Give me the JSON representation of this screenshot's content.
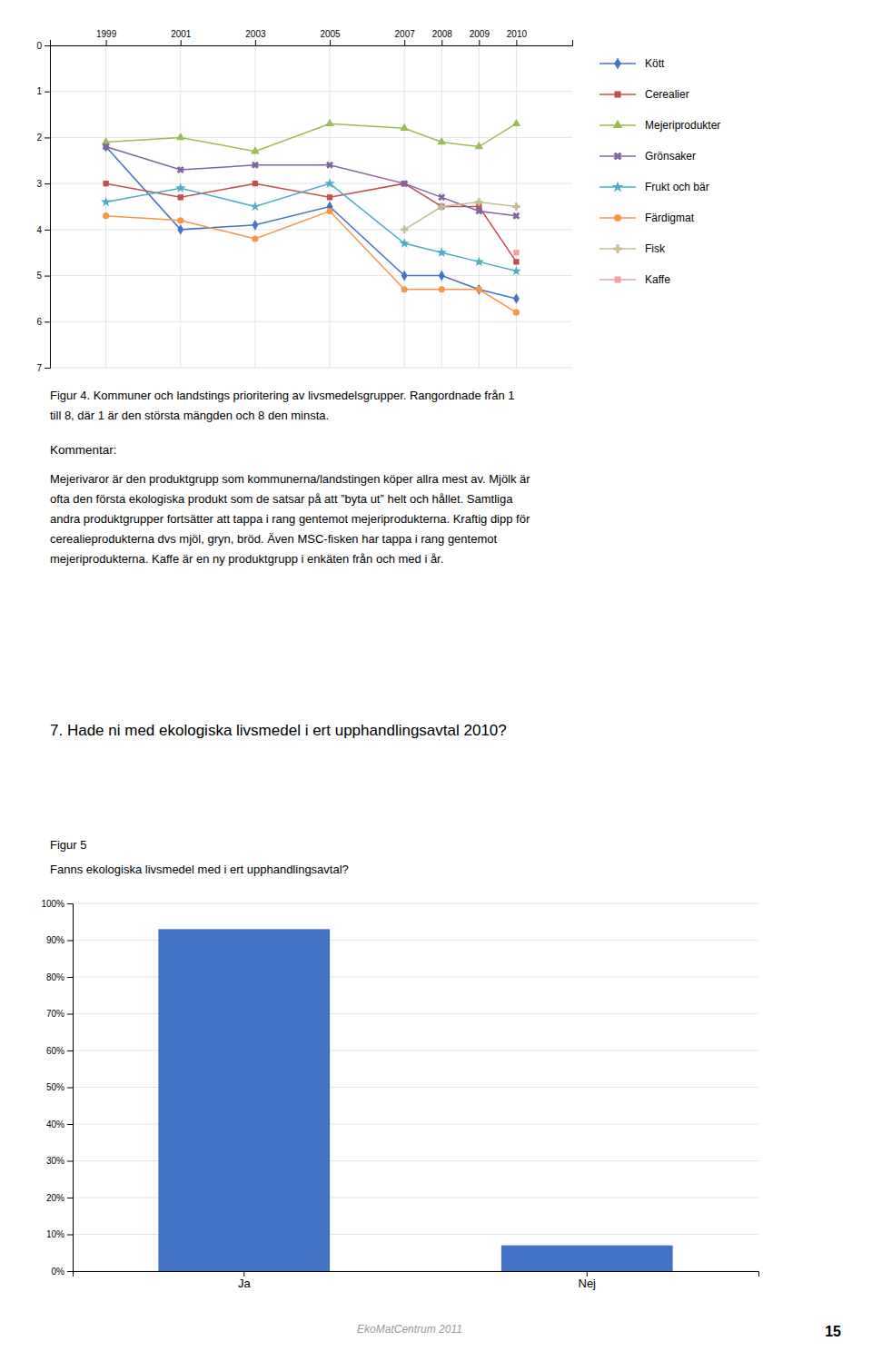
{
  "chart_data": [
    {
      "type": "line",
      "x": [
        1999,
        2001,
        2003,
        2005,
        2007,
        2008,
        2009,
        2010
      ],
      "xlim": [
        1997.5,
        2011.5
      ],
      "xticks": [
        1999,
        2001,
        2003,
        2005,
        2007,
        2008,
        2009,
        2010
      ],
      "ylim": [
        7,
        0
      ],
      "yticks": [
        0,
        1,
        2,
        3,
        4,
        5,
        6,
        7
      ],
      "grid": true,
      "legend": "right",
      "series": [
        {
          "name": "Kött",
          "color": "#4472C4",
          "marker": "diamond",
          "values": [
            2.2,
            4.0,
            3.9,
            3.5,
            5.0,
            5.0,
            5.3,
            5.5
          ]
        },
        {
          "name": "Cerealier",
          "color": "#C0504D",
          "marker": "square",
          "values": [
            3.0,
            3.3,
            3.0,
            3.3,
            3.0,
            3.5,
            3.5,
            4.7
          ]
        },
        {
          "name": "Mejeriprodukter",
          "color": "#9BBB59",
          "marker": "triangle",
          "values": [
            2.1,
            2.0,
            2.3,
            1.7,
            1.8,
            2.1,
            2.2,
            1.7
          ]
        },
        {
          "name": "Grönsaker",
          "color": "#8064A2",
          "marker": "x",
          "values": [
            2.2,
            2.7,
            2.6,
            2.6,
            3.0,
            3.3,
            3.6,
            3.7
          ]
        },
        {
          "name": "Frukt och bär",
          "color": "#4BACC6",
          "marker": "star",
          "values": [
            3.4,
            3.1,
            3.5,
            3.0,
            4.3,
            4.5,
            4.7,
            4.9
          ]
        },
        {
          "name": "Färdigmat",
          "color": "#F79646",
          "marker": "circle",
          "values": [
            3.7,
            3.8,
            4.2,
            3.6,
            5.3,
            5.3,
            5.3,
            5.8
          ]
        },
        {
          "name": "Fisk",
          "color": "#C4BC96",
          "marker": "plus",
          "values": [
            null,
            null,
            null,
            null,
            4.0,
            3.5,
            3.4,
            3.5
          ]
        },
        {
          "name": "Kaffe",
          "color": "#F0A0A0",
          "marker": "square",
          "values": [
            null,
            null,
            null,
            null,
            null,
            null,
            null,
            4.5
          ]
        }
      ],
      "annotations": [
        "Figur 4. Kommuner och landstings prioritering av livsmedelsgrupper. Rangordnade från 1",
        "till 8, där 1 är den största mängden och 8 den minsta.",
        "Kommentar:",
        "Mejerivaror är den produktgrupp som kommunerna/landstingen köper allra mest av. Mjölk är",
        "ofta den första ekologiska produkt som de satsar på att ”byta ut” helt och hållet. Samtliga",
        "andra produktgrupper fortsätter att tappa i rang gentemot mejeriprodukterna. Kraftig dipp för",
        "cerealieprodukterna dvs mjöl, gryn, bröd. Även MSC-fisken har tappa i rang gentemot",
        "mejeriprodukterna. Kaffe är en ny produktgrupp i enkäten från och med i år."
      ]
    },
    {
      "type": "bar",
      "annotations": [
        "7. Hade ni med ekologiska livsmedel i ert upphandlingsavtal 2010?"
      ],
      "title": "Figur 5",
      "subtitle": "Fanns ekologiska livsmedel med i ert upphandlingsavtal?",
      "categories": [
        "Ja",
        "Nej"
      ],
      "values": [
        0.93,
        0.07
      ],
      "color": "#4472C4",
      "ylim": [
        0,
        1.0
      ],
      "yticks": [
        {
          "value": 0.0,
          "label": "0%"
        },
        {
          "value": 0.1,
          "label": "10%"
        },
        {
          "value": 0.2,
          "label": "20%"
        },
        {
          "value": 0.3,
          "label": "30%"
        },
        {
          "value": 0.4,
          "label": "40%"
        },
        {
          "value": 0.5,
          "label": "50%"
        },
        {
          "value": 0.6,
          "label": "60%"
        },
        {
          "value": 0.7,
          "label": "70%"
        },
        {
          "value": 0.8,
          "label": "80%"
        },
        {
          "value": 0.9,
          "label": "90%"
        },
        {
          "value": 1.0,
          "label": "100%"
        }
      ],
      "grid": true
    }
  ],
  "footer": "EkoMatCentrum 2011",
  "page_number": "15"
}
